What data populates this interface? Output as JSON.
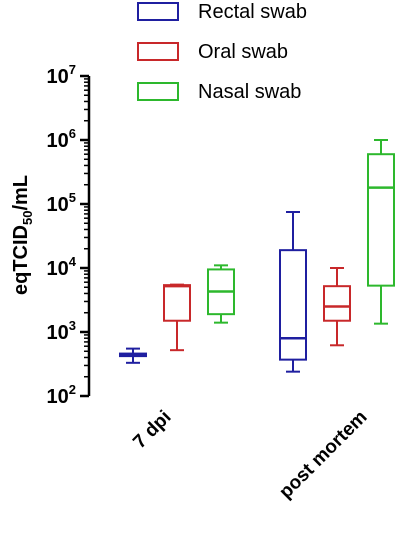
{
  "chart_data": {
    "type": "box",
    "yscale": "log",
    "ylim": [
      100,
      10000000
    ],
    "ylabel": {
      "main": "eqTCID",
      "sub": "50",
      "tail": "/mL"
    },
    "ticks": [
      {
        "value": 100,
        "base": "10",
        "exp": "2"
      },
      {
        "value": 1000,
        "base": "10",
        "exp": "3"
      },
      {
        "value": 10000,
        "base": "10",
        "exp": "4"
      },
      {
        "value": 100000,
        "base": "10",
        "exp": "5"
      },
      {
        "value": 1000000,
        "base": "10",
        "exp": "6"
      },
      {
        "value": 10000000,
        "base": "10",
        "exp": "7"
      }
    ],
    "categories": [
      "7 dpi",
      "post mortem"
    ],
    "legend_position": "top",
    "series": [
      {
        "name": "Rectal swab",
        "color": "#1f1fa0",
        "boxes": [
          {
            "min": 330,
            "q1": 420,
            "median": 440,
            "q3": 460,
            "max": 550
          },
          {
            "min": 240,
            "q1": 370,
            "median": 800,
            "q3": 19000,
            "max": 75000
          }
        ]
      },
      {
        "name": "Oral swab",
        "color": "#c8282a",
        "boxes": [
          {
            "min": 520,
            "q1": 1500,
            "median": 5200,
            "q3": 5400,
            "max": 5500
          },
          {
            "min": 620,
            "q1": 1500,
            "median": 2500,
            "q3": 5200,
            "max": 10000
          }
        ]
      },
      {
        "name": "Nasal swab",
        "color": "#2db82d",
        "boxes": [
          {
            "min": 1400,
            "q1": 1900,
            "median": 4300,
            "q3": 9500,
            "max": 11000
          },
          {
            "min": 1350,
            "q1": 5300,
            "median": 180000,
            "q3": 600000,
            "max": 1000000
          }
        ]
      }
    ]
  }
}
